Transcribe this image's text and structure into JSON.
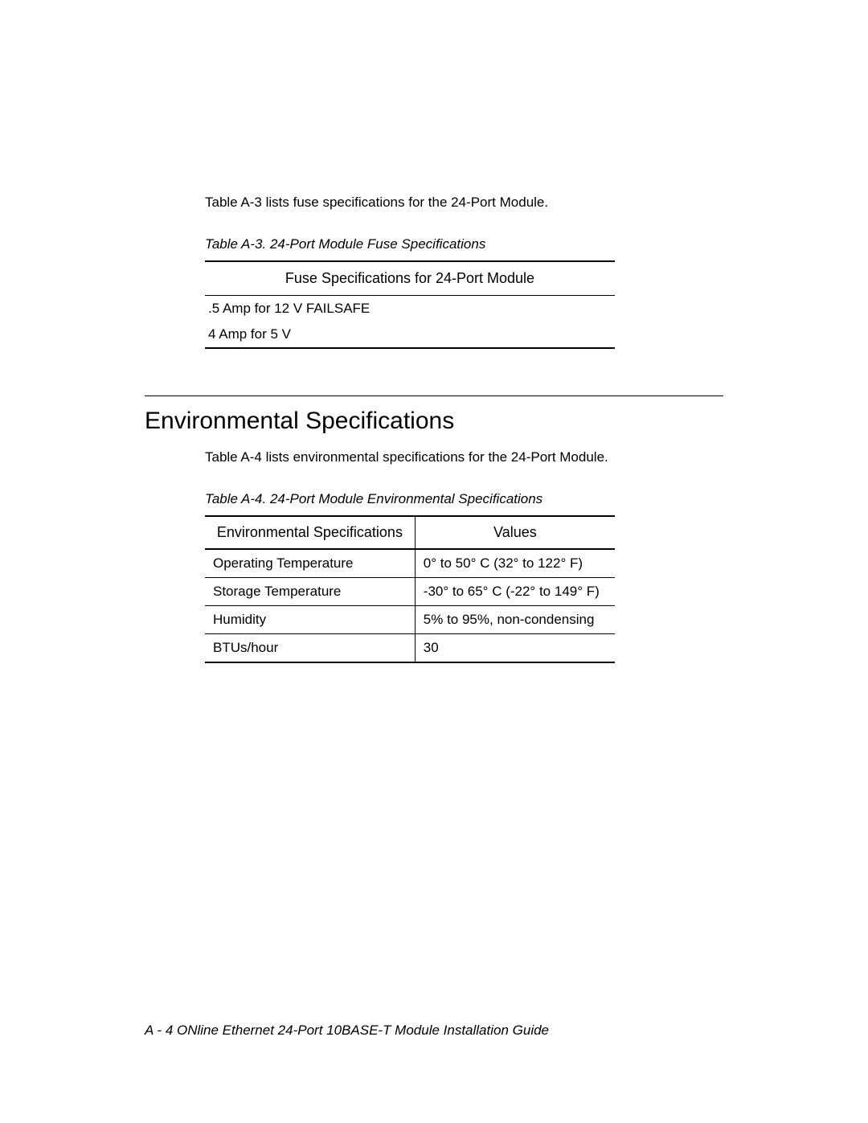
{
  "intro_fuse": "Table A-3 lists fuse specifications for the 24-Port Module.",
  "table_a3": {
    "caption": "Table A-3.  24-Port Module Fuse Specifications",
    "header": "Fuse Specifications for 24-Port Module",
    "rows": [
      ".5 Amp for 12 V FAILSAFE",
      "4 Amp for 5 V"
    ]
  },
  "section_heading": "Environmental Specifications",
  "intro_env": "Table A-4 lists environmental specifications for the 24-Port Module.",
  "table_a4": {
    "caption": "Table A-4.  24-Port Module Environmental Specifications",
    "columns": [
      "Environmental Specifications",
      "Values"
    ],
    "rows": [
      [
        "Operating Temperature",
        "0° to 50° C (32° to 122° F)"
      ],
      [
        "Storage Temperature",
        "-30° to 65° C (-22° to 149° F)"
      ],
      [
        "Humidity",
        "5% to 95%, non-condensing"
      ],
      [
        "BTUs/hour",
        "30"
      ]
    ]
  },
  "footer": "A - 4  ONline Ethernet 24-Port 10BASE-T Module Installation Guide"
}
